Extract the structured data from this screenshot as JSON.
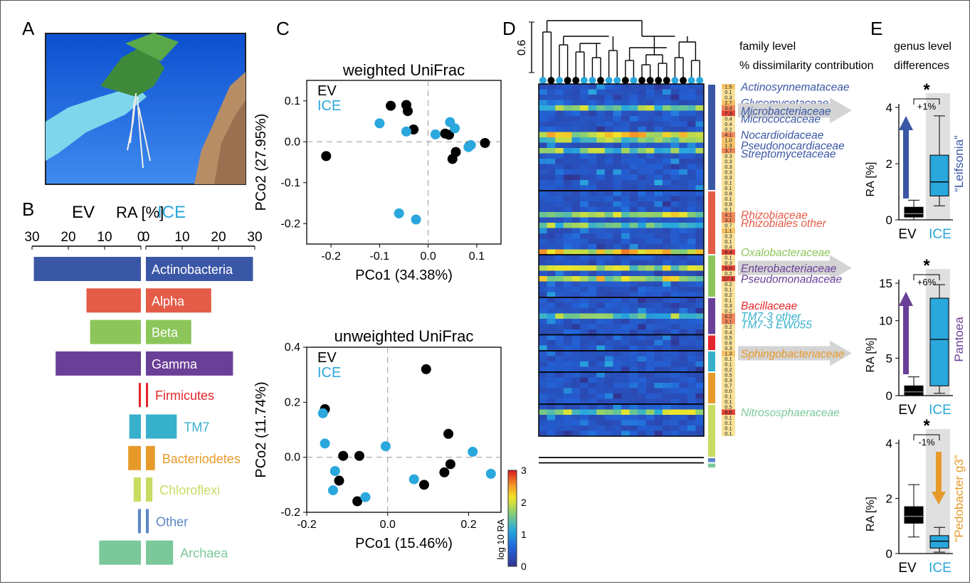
{
  "colors": {
    "ev": "#000000",
    "ice": "#2aa7dc",
    "actino": "#3a57a6",
    "alpha": "#e45b48",
    "beta": "#8cc65a",
    "gamma": "#6a3f98",
    "firmicutes": "#e4252b",
    "tm7": "#37b0cc",
    "bacteroidetes": "#e79a2a",
    "chloroflexi": "#c8dc61",
    "other": "#5d86c6",
    "archaea": "#7bc89a"
  },
  "panels": {
    "A": {
      "letter": "A"
    },
    "B": {
      "letter": "B",
      "ev_label": "EV",
      "ice_label": "ICE",
      "ra_label": "RA [%]",
      "left_ticks": [
        "30",
        "20",
        "10",
        "0"
      ],
      "right_ticks": [
        "0",
        "10",
        "20",
        "30"
      ]
    },
    "C": {
      "letter": "C",
      "weighted_title": "weighted UniFrac",
      "unweighted_title": "unweighted UniFrac",
      "ev_label": "EV",
      "ice_label": "ICE"
    },
    "D": {
      "letter": "D",
      "header_line1": "family level",
      "header_line2": "% dissimilarity contribution",
      "dendro_scale": "0.6",
      "colorbar_label": "log 10 RA",
      "colorbar_ticks": [
        "0",
        "1",
        "2",
        "3"
      ]
    },
    "E": {
      "letter": "E",
      "header_line1": "genus level",
      "header_line2": "differences"
    }
  },
  "chart_data": [
    {
      "id": "B",
      "type": "bar",
      "orientation": "horizontal-mirrored",
      "xlabel": "RA [%]",
      "xlim": [
        0,
        30
      ],
      "categories": [
        "Actinobacteria",
        "Alpha",
        "Beta",
        "Gamma",
        "Firmicutes",
        "TM7",
        "Bacteriodetes",
        "Chloroflexi",
        "Other",
        "Archaea"
      ],
      "category_colors": [
        "actino",
        "alpha",
        "beta",
        "gamma",
        "firmicutes",
        "tm7",
        "bacteroidetes",
        "chloroflexi",
        "other",
        "archaea"
      ],
      "series": [
        {
          "name": "EV",
          "values": [
            29.5,
            15,
            14,
            23.5,
            0.6,
            3.2,
            3.5,
            2,
            0.8,
            11.5
          ]
        },
        {
          "name": "ICE",
          "values": [
            29.5,
            18,
            12.5,
            24,
            0.6,
            8.5,
            2.5,
            1.8,
            0.8,
            7.5
          ]
        }
      ]
    },
    {
      "id": "C-weighted",
      "type": "scatter",
      "title": "weighted UniFrac",
      "xlabel": "PCo1 (34.38%)",
      "ylabel": "PCo2 (27.95%)",
      "xlim": [
        -0.25,
        0.15
      ],
      "ylim": [
        -0.25,
        0.15
      ],
      "xticks": [
        "-0.2",
        "-0.1",
        "0.0",
        "0.1"
      ],
      "yticks": [
        "-0.2",
        "-0.1",
        "0.0",
        "0.1"
      ],
      "series": [
        {
          "name": "EV",
          "points": [
            [
              -0.21,
              -0.035
            ],
            [
              -0.077,
              0.088
            ],
            [
              -0.045,
              0.09
            ],
            [
              -0.042,
              0.075
            ],
            [
              -0.03,
              0.03
            ],
            [
              0.035,
              0.02
            ],
            [
              0.043,
              0.017
            ],
            [
              0.057,
              -0.025
            ],
            [
              0.05,
              -0.042
            ],
            [
              0.085,
              -0.01
            ],
            [
              0.117,
              -0.003
            ]
          ]
        },
        {
          "name": "ICE",
          "points": [
            [
              -0.1,
              0.045
            ],
            [
              -0.045,
              0.025
            ],
            [
              -0.06,
              -0.175
            ],
            [
              -0.025,
              -0.19
            ],
            [
              0.015,
              0.018
            ],
            [
              0.045,
              0.048
            ],
            [
              0.055,
              0.033
            ],
            [
              0.088,
              -0.008
            ],
            [
              0.083,
              -0.013
            ]
          ]
        }
      ]
    },
    {
      "id": "C-unweighted",
      "type": "scatter",
      "title": "unweighted UniFrac",
      "xlabel": "PCo1 (15.46%)",
      "ylabel": "PCo2 (11.74%)",
      "xlim": [
        -0.2,
        0.28
      ],
      "ylim": [
        -0.2,
        0.4
      ],
      "xticks": [
        "-0.2",
        "0.0",
        "0.2"
      ],
      "yticks": [
        "-0.2",
        "0.0",
        "0.2",
        "0.4"
      ],
      "series": [
        {
          "name": "EV",
          "points": [
            [
              -0.155,
              0.175
            ],
            [
              -0.11,
              0.005
            ],
            [
              -0.07,
              0.005
            ],
            [
              -0.12,
              -0.085
            ],
            [
              -0.075,
              -0.16
            ],
            [
              0.095,
              0.32
            ],
            [
              0.15,
              0.085
            ],
            [
              0.155,
              -0.025
            ],
            [
              0.14,
              -0.055
            ],
            [
              0.09,
              -0.1
            ]
          ]
        },
        {
          "name": "ICE",
          "points": [
            [
              -0.16,
              0.16
            ],
            [
              -0.155,
              0.05
            ],
            [
              -0.13,
              -0.05
            ],
            [
              -0.135,
              -0.12
            ],
            [
              -0.055,
              -0.145
            ],
            [
              -0.005,
              0.04
            ],
            [
              0.065,
              -0.08
            ],
            [
              0.21,
              0.02
            ],
            [
              0.255,
              -0.06
            ]
          ]
        }
      ]
    },
    {
      "id": "D",
      "type": "heatmap",
      "rows": 66,
      "columns": 20,
      "value_range": [
        0,
        3
      ],
      "value_label": "log 10 RA",
      "column_groups": [
        "ICE",
        "EV",
        "ICE",
        "EV",
        "EV",
        "ICE",
        "ICE",
        "EV",
        "ICE",
        "ICE",
        "EV",
        "ICE",
        "EV",
        "EV",
        "EV",
        "EV",
        "ICE",
        "EV",
        "ICE",
        "ICE"
      ],
      "row_blocks": [
        {
          "group": "actino",
          "rows": 20
        },
        {
          "group": "alpha",
          "rows": 12
        },
        {
          "group": "beta",
          "rows": 8
        },
        {
          "group": "gamma",
          "rows": 7
        },
        {
          "group": "firmicutes",
          "rows": 3
        },
        {
          "group": "tm7",
          "rows": 4
        },
        {
          "group": "bacteroidetes",
          "rows": 6
        },
        {
          "group": "chloroflexi",
          "rows": 10
        },
        {
          "group": "other",
          "rows": 1
        },
        {
          "group": "archaea",
          "rows": 1
        }
      ],
      "dissimilarity_contribution": [
        "1.5",
        "0.1",
        "0.3",
        "2.7",
        "4.4",
        "7.3",
        "0.4",
        "0.4",
        "0.2",
        "4.1",
        "1.0",
        "1.3",
        "3.7",
        "0.3",
        "0.3",
        "0.3",
        "0.3",
        "0.3",
        "0.1",
        "0.1",
        "0.8",
        "0.1",
        "0.8",
        "0.1",
        "4.1",
        "3.1",
        "0.7",
        "1.1",
        "0.3",
        "0.1",
        "0.4",
        "8.4",
        "0.1",
        "0.3",
        "9.0",
        "0.2",
        "17.3",
        "0.2",
        "0.1",
        "0.2",
        "0.1",
        "0.3",
        "0.2",
        "6.2",
        "3.1",
        "0.2",
        "0.4",
        "0.5",
        "0.6",
        "0.3",
        "1.3",
        "0.1",
        "0.1",
        "0.2",
        "0.5",
        "0.3",
        "0.7",
        "0.0",
        "0.1",
        "0.1",
        "0.5",
        "8.6",
        "0.1",
        "0.1",
        "0.1",
        "0.1"
      ],
      "family_labels": [
        {
          "row": 0,
          "text": "Actinosynnemataceae",
          "group": "actino"
        },
        {
          "row": 3,
          "text": "Glycomycetaceae",
          "group": "actino"
        },
        {
          "row": 4.5,
          "text": "Microbacteriaceae",
          "group": "actino"
        },
        {
          "row": 6,
          "text": "Micrococcaceae",
          "group": "actino"
        },
        {
          "row": 9,
          "text": "Nocardioidaceae",
          "group": "actino"
        },
        {
          "row": 11,
          "text": "Pseudonocardiaceae",
          "group": "actino"
        },
        {
          "row": 12.5,
          "text": "Streptomycetaceae",
          "group": "actino"
        },
        {
          "row": 24,
          "text": "Rhizobiaceae",
          "group": "alpha"
        },
        {
          "row": 25.5,
          "text": "Rhizobiales other",
          "group": "alpha"
        },
        {
          "row": 31,
          "text": "Oxalobacteraceae",
          "group": "beta"
        },
        {
          "row": 34,
          "text": "Enterobacteriaceae",
          "group": "gamma"
        },
        {
          "row": 36,
          "text": "Pseudomonadaceae",
          "group": "gamma"
        },
        {
          "row": 41,
          "text": "Bacillaceae",
          "group": "firmicutes"
        },
        {
          "row": 43,
          "text": "TM7-3 other",
          "group": "tm7"
        },
        {
          "row": 44.5,
          "text": "TM7-3 EW055",
          "group": "tm7"
        },
        {
          "row": 50,
          "text": "Sphingobacteriaceae",
          "group": "bacteroidetes"
        },
        {
          "row": 61,
          "text": "Nitrososphaeraceae",
          "group": "archaea"
        }
      ]
    },
    {
      "id": "E-Leifsonia",
      "type": "box",
      "genus": "“Leifsonia”",
      "ylabel": "RA [%]",
      "ylim": [
        0,
        4
      ],
      "yticks": [
        "0",
        "2",
        "4"
      ],
      "significance": "*",
      "difference": "+1%",
      "categories": [
        "EV",
        "ICE"
      ],
      "boxes": [
        {
          "name": "EV",
          "whisker_low": 0,
          "q1": 0.1,
          "median": 0.22,
          "q3": 0.45,
          "whisker_high": 0.7
        },
        {
          "name": "ICE",
          "whisker_low": 0.5,
          "q1": 0.85,
          "median": 1.35,
          "q3": 2.3,
          "whisker_high": 3.7
        }
      ]
    },
    {
      "id": "E-Pantoea",
      "type": "box",
      "genus": "Pantoea",
      "ylabel": "RA [%]",
      "ylim": [
        0,
        15
      ],
      "yticks": [
        "0",
        "5",
        "10",
        "15"
      ],
      "significance": "*",
      "difference": "+6%",
      "categories": [
        "EV",
        "ICE"
      ],
      "boxes": [
        {
          "name": "EV",
          "whisker_low": 0,
          "q1": 0.1,
          "median": 0.5,
          "q3": 1.3,
          "whisker_high": 2.5
        },
        {
          "name": "ICE",
          "whisker_low": 0.3,
          "q1": 1.3,
          "median": 7.5,
          "q3": 13,
          "whisker_high": 14.8
        }
      ]
    },
    {
      "id": "E-Pedobacter",
      "type": "box",
      "genus": "“Pedobacter g3”",
      "ylabel": "RA [%]",
      "ylim": [
        0,
        4
      ],
      "yticks": [
        "0",
        "2",
        "4"
      ],
      "significance": "*",
      "difference": "-1%",
      "categories": [
        "EV",
        "ICE"
      ],
      "boxes": [
        {
          "name": "EV",
          "whisker_low": 0.6,
          "q1": 1.1,
          "median": 1.35,
          "q3": 1.7,
          "whisker_high": 2.5
        },
        {
          "name": "ICE",
          "whisker_low": 0.05,
          "q1": 0.2,
          "median": 0.45,
          "q3": 0.65,
          "whisker_high": 0.95
        }
      ]
    }
  ]
}
